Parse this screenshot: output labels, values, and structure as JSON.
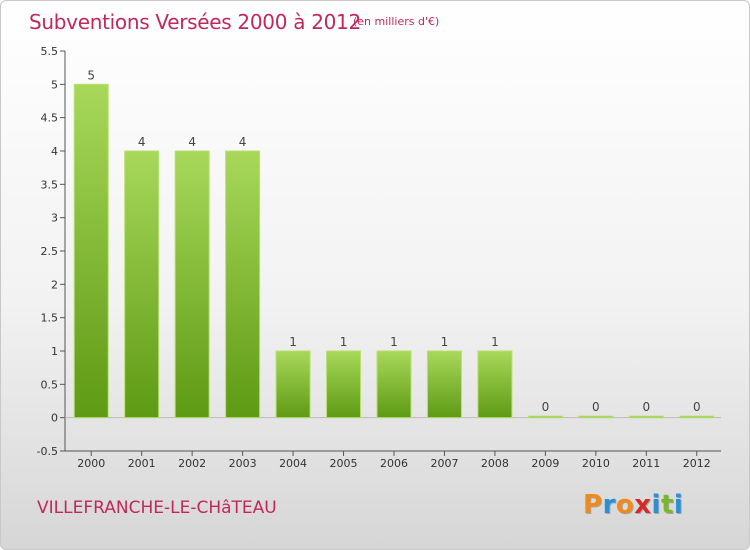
{
  "header": {
    "title": "Subventions Versées 2000 à 2012",
    "unit": "(en milliers d'€)"
  },
  "footer": {
    "commune": "VILLEFRANCHE-LE-CHâTEAU",
    "logo_letters": [
      "P",
      "r",
      "o",
      "x",
      "i",
      "t",
      "i"
    ]
  },
  "colors": {
    "title": "#c0285a",
    "bar_top": "#a8d85a",
    "bar_bottom": "#5e9a14",
    "logo": [
      "#f08a1c",
      "#2a8fd6",
      "#f08a1c",
      "#d62a2a",
      "#2a8fd6",
      "#7ab82a",
      "#2a8fd6"
    ]
  },
  "chart_data": {
    "type": "bar",
    "title": "Subventions Versées 2000 à 2012",
    "subtitle": "(en milliers d'€)",
    "categories": [
      "2000",
      "2001",
      "2002",
      "2003",
      "2004",
      "2005",
      "2006",
      "2007",
      "2008",
      "2009",
      "2010",
      "2011",
      "2012"
    ],
    "values": [
      5,
      4,
      4,
      4,
      1,
      1,
      1,
      1,
      1,
      0,
      0,
      0,
      0
    ],
    "data_labels": [
      "5",
      "4",
      "4",
      "4",
      "1",
      "1",
      "1",
      "1",
      "1",
      "0",
      "0",
      "0",
      "0"
    ],
    "y_ticks": [
      "-0.5",
      "0",
      "0.5",
      "1",
      "1.5",
      "2",
      "2.5",
      "3",
      "3.5",
      "4",
      "4.5",
      "5",
      "5.5"
    ],
    "ylim": [
      -0.5,
      5.5
    ],
    "xlabel": "",
    "ylabel": "",
    "grid": false,
    "legend": "none"
  }
}
